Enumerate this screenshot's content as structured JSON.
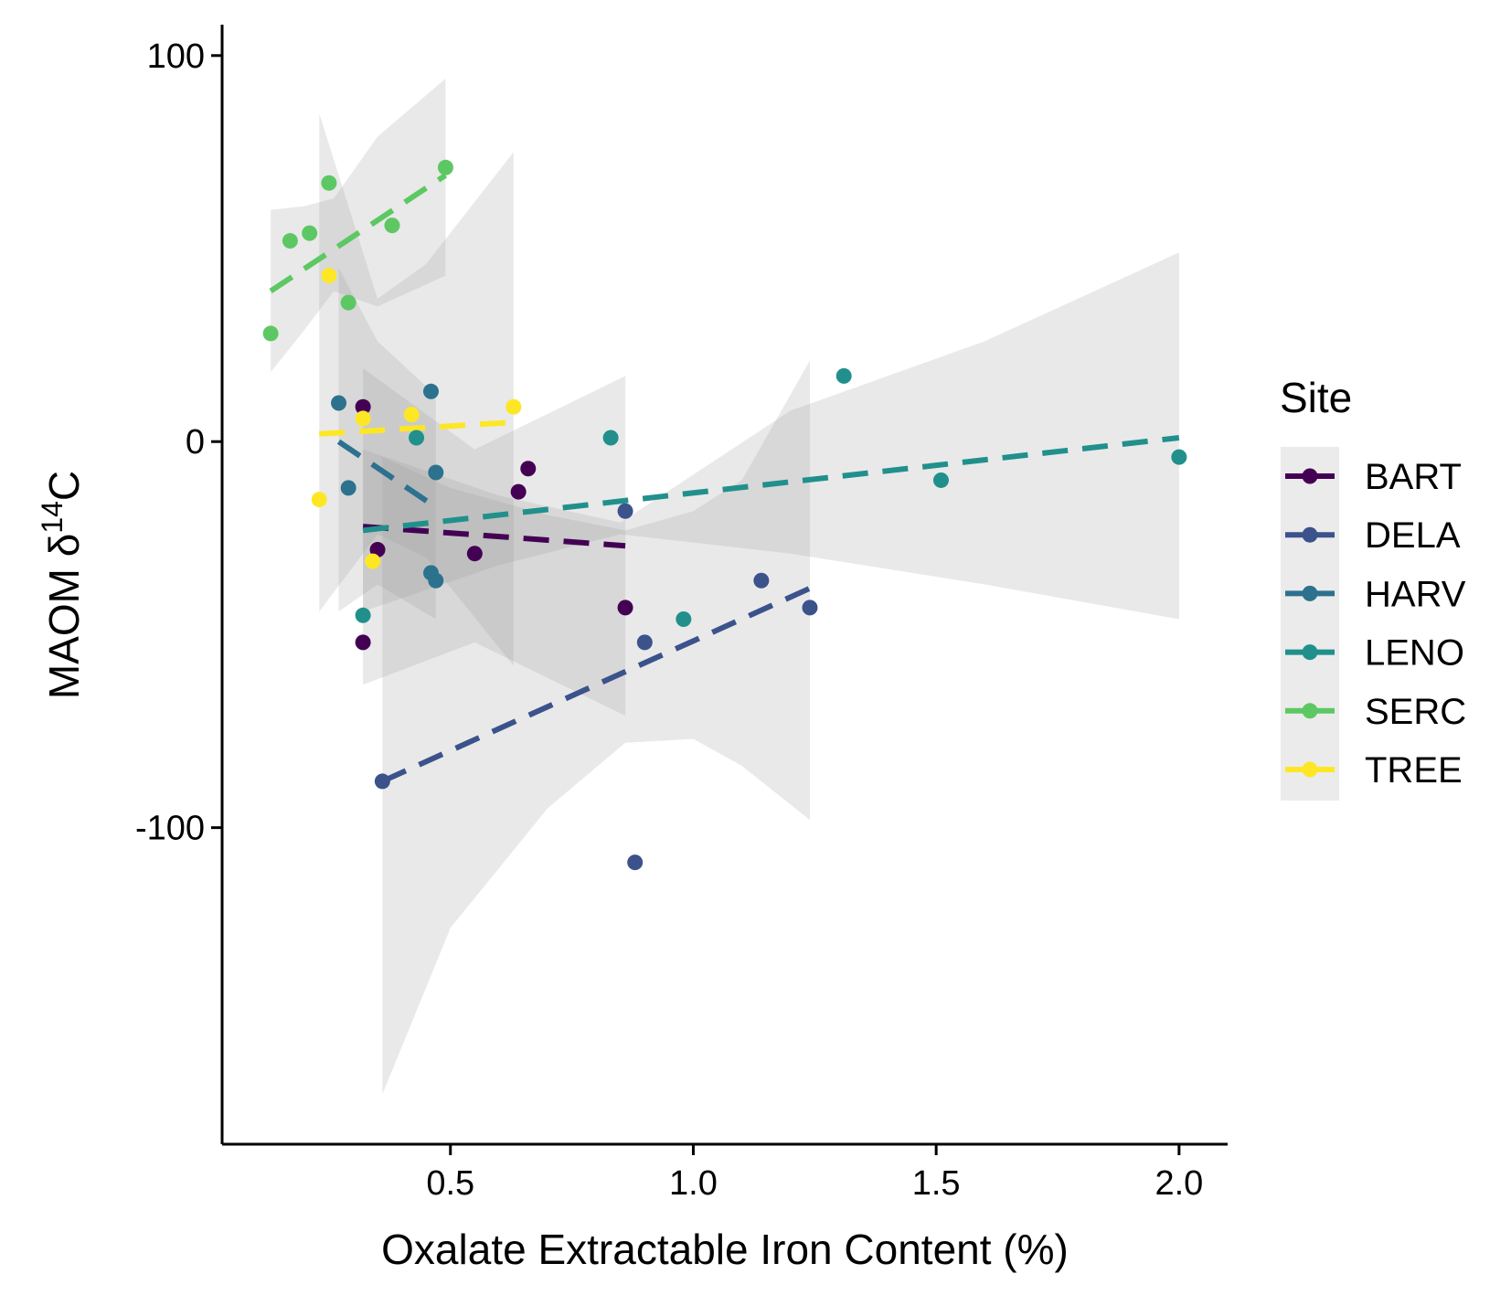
{
  "chart_data": {
    "type": "scatter",
    "title": "",
    "xlabel": "Oxalate Extractable Iron Content (%)",
    "ylabel_main": "MAOM δ",
    "ylabel_sup": "14",
    "ylabel_end": "C",
    "xlim": [
      0.03,
      2.1
    ],
    "ylim": [
      -182,
      108
    ],
    "x_ticks": [
      0.5,
      1.0,
      1.5,
      2.0
    ],
    "x_tick_labels": [
      "0.5",
      "1.0",
      "1.5",
      "2.0"
    ],
    "y_ticks": [
      100,
      0,
      -100
    ],
    "y_tick_labels": [
      "100",
      "0",
      "-100"
    ],
    "grid": false,
    "legend": {
      "title": "Site",
      "placement": "right"
    },
    "series": [
      {
        "name": "BART",
        "color": "#440154",
        "points": [
          [
            0.32,
            9
          ],
          [
            0.32,
            -52
          ],
          [
            0.35,
            -28
          ],
          [
            0.55,
            -29
          ],
          [
            0.64,
            -13
          ],
          [
            0.66,
            -7
          ],
          [
            0.86,
            -43
          ]
        ],
        "fit": [
          [
            0.32,
            -22
          ],
          [
            0.86,
            -27
          ]
        ],
        "band": {
          "x": [
            0.32,
            0.55,
            0.86
          ],
          "lower": [
            -63,
            -52,
            -71
          ],
          "upper": [
            19,
            -2,
            17
          ]
        }
      },
      {
        "name": "DELA",
        "color": "#3B528B",
        "points": [
          [
            0.36,
            -88
          ],
          [
            0.86,
            -18
          ],
          [
            0.88,
            -109
          ],
          [
            0.9,
            -52
          ],
          [
            1.14,
            -36
          ],
          [
            1.24,
            -43
          ]
        ],
        "fit": [
          [
            0.36,
            -88
          ],
          [
            1.24,
            -38
          ]
        ],
        "band": {
          "x": [
            0.36,
            0.5,
            0.7,
            0.86,
            1.0,
            1.1,
            1.24
          ],
          "lower": [
            -169,
            -126,
            -95,
            -78,
            -77,
            -84,
            -98
          ],
          "upper": [
            -4,
            -12,
            -19,
            -23,
            -18,
            -10,
            21
          ]
        }
      },
      {
        "name": "HARV",
        "color": "#2C728E",
        "points": [
          [
            0.27,
            10
          ],
          [
            0.29,
            -12
          ],
          [
            0.46,
            13
          ],
          [
            0.46,
            -34
          ],
          [
            0.47,
            -36
          ],
          [
            0.47,
            -8
          ]
        ],
        "fit": [
          [
            0.27,
            0
          ],
          [
            0.47,
            -17
          ]
        ],
        "band": {
          "x": [
            0.27,
            0.35,
            0.47
          ],
          "lower": [
            -44,
            -37,
            -46
          ],
          "upper": [
            45,
            26,
            12
          ]
        }
      },
      {
        "name": "LENO",
        "color": "#21908C",
        "points": [
          [
            0.32,
            -45
          ],
          [
            0.43,
            1
          ],
          [
            0.83,
            1
          ],
          [
            0.98,
            -46
          ],
          [
            1.31,
            17
          ],
          [
            1.51,
            -10
          ],
          [
            2.0,
            -4
          ]
        ],
        "fit": [
          [
            0.32,
            -23
          ],
          [
            2.0,
            1
          ]
        ],
        "band": {
          "x": [
            0.32,
            0.6,
            0.85,
            1.2,
            1.6,
            2.0
          ],
          "lower": [
            -44,
            -32,
            -24,
            -29,
            -37,
            -46
          ],
          "upper": [
            -2,
            -14,
            -21,
            8,
            26,
            49
          ]
        }
      },
      {
        "name": "SERC",
        "color": "#5DC863",
        "points": [
          [
            0.13,
            28
          ],
          [
            0.17,
            52
          ],
          [
            0.21,
            54
          ],
          [
            0.25,
            67
          ],
          [
            0.29,
            36
          ],
          [
            0.38,
            56
          ],
          [
            0.49,
            71
          ]
        ],
        "fit": [
          [
            0.13,
            39
          ],
          [
            0.49,
            69
          ]
        ],
        "band": {
          "x": [
            0.13,
            0.2,
            0.26,
            0.35,
            0.49
          ],
          "lower": [
            18,
            29,
            39,
            35,
            43
          ],
          "upper": [
            60,
            61,
            63,
            79,
            94
          ]
        }
      },
      {
        "name": "TREE",
        "color": "#FDE725",
        "points": [
          [
            0.23,
            -15
          ],
          [
            0.25,
            43
          ],
          [
            0.32,
            6
          ],
          [
            0.34,
            -31
          ],
          [
            0.42,
            7
          ],
          [
            0.63,
            9
          ]
        ],
        "fit": [
          [
            0.23,
            2
          ],
          [
            0.63,
            5
          ]
        ],
        "band": {
          "x": [
            0.23,
            0.35,
            0.45,
            0.63
          ],
          "lower": [
            -44,
            -24,
            -30,
            -58
          ],
          "upper": [
            85,
            37,
            46,
            75
          ]
        }
      }
    ]
  }
}
